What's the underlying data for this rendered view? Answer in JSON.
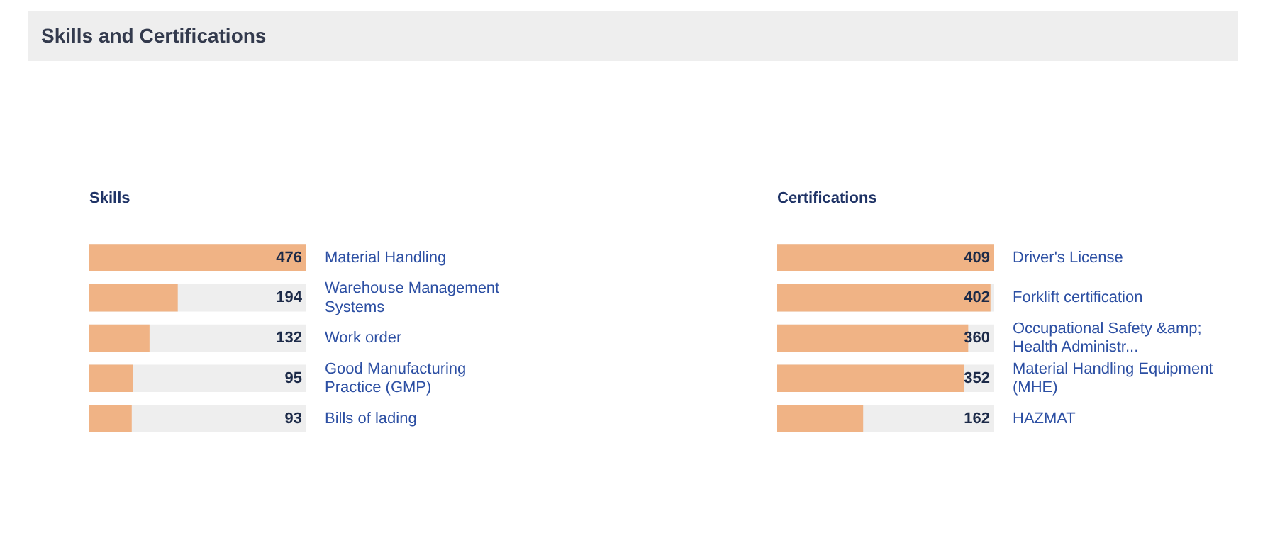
{
  "chart_data": [
    {
      "type": "other",
      "title": "Skills and Certifications"
    },
    {
      "type": "bar",
      "orientation": "horizontal",
      "title": "Skills",
      "categories": [
        "Material Handling",
        "Warehouse Management Systems",
        "Work order",
        "Good Manufacturing Practice (GMP)",
        "Bills of lading"
      ],
      "values": [
        476,
        194,
        132,
        95,
        93
      ],
      "color": "#f0b385",
      "data_labels": true,
      "tick_labels": "y"
    },
    {
      "type": "bar",
      "orientation": "horizontal",
      "title": "Certifications",
      "categories": [
        "Driver's License",
        "Forklift certification",
        "Occupational Safety &amp; Health Administr...",
        "Material Handling Equipment (MHE)",
        "HAZMAT"
      ],
      "values": [
        409,
        402,
        360,
        352,
        162
      ],
      "color": "#f0b385",
      "data_labels": true,
      "tick_labels": "y"
    }
  ]
}
